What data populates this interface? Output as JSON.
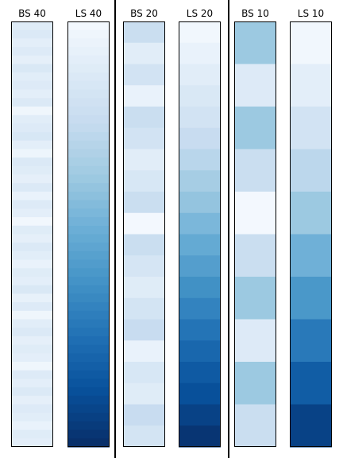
{
  "chart_data": {
    "type": "heatmap",
    "colormap": "Blues",
    "color_range": [
      0,
      1
    ],
    "panels": [
      {
        "title": "BS 40",
        "values": [
          0.12,
          0.14,
          0.1,
          0.13,
          0.09,
          0.15,
          0.11,
          0.13,
          0.1,
          0.14,
          0.04,
          0.11,
          0.13,
          0.16,
          0.1,
          0.05,
          0.14,
          0.12,
          0.09,
          0.14,
          0.07,
          0.13,
          0.1,
          0.03,
          0.12,
          0.09,
          0.14,
          0.11,
          0.07,
          0.12,
          0.1,
          0.15,
          0.08,
          0.13,
          0.04,
          0.11,
          0.14,
          0.09,
          0.12,
          0.1,
          0.04,
          0.13,
          0.1,
          0.14,
          0.09,
          0.13,
          0.11,
          0.07,
          0.12,
          0.1
        ]
      },
      {
        "title": "LS 40",
        "values": [
          0.02,
          0.04,
          0.06,
          0.08,
          0.1,
          0.12,
          0.14,
          0.16,
          0.18,
          0.2,
          0.22,
          0.24,
          0.26,
          0.28,
          0.3,
          0.32,
          0.34,
          0.36,
          0.38,
          0.4,
          0.42,
          0.44,
          0.46,
          0.48,
          0.5,
          0.52,
          0.54,
          0.56,
          0.58,
          0.6,
          0.62,
          0.64,
          0.66,
          0.68,
          0.7,
          0.72,
          0.74,
          0.76,
          0.78,
          0.8,
          0.82,
          0.84,
          0.86,
          0.88,
          0.9,
          0.92,
          0.94,
          0.96,
          0.98,
          1.0
        ]
      },
      {
        "title": "BS 20",
        "values": [
          0.23,
          0.11,
          0.19,
          0.07,
          0.23,
          0.19,
          0.11,
          0.16,
          0.23,
          0.02,
          0.23,
          0.17,
          0.12,
          0.18,
          0.24,
          0.07,
          0.16,
          0.12,
          0.24,
          0.18
        ]
      },
      {
        "title": "LS 20",
        "values": [
          0.03,
          0.07,
          0.11,
          0.15,
          0.19,
          0.24,
          0.29,
          0.35,
          0.4,
          0.46,
          0.52,
          0.57,
          0.63,
          0.68,
          0.74,
          0.79,
          0.84,
          0.88,
          0.93,
          0.98
        ]
      },
      {
        "title": "BS 10",
        "values": [
          0.38,
          0.13,
          0.38,
          0.23,
          0.02,
          0.23,
          0.38,
          0.13,
          0.38,
          0.23
        ]
      },
      {
        "title": "LS 10",
        "values": [
          0.03,
          0.1,
          0.19,
          0.28,
          0.38,
          0.49,
          0.6,
          0.72,
          0.83,
          0.93
        ]
      }
    ]
  }
}
